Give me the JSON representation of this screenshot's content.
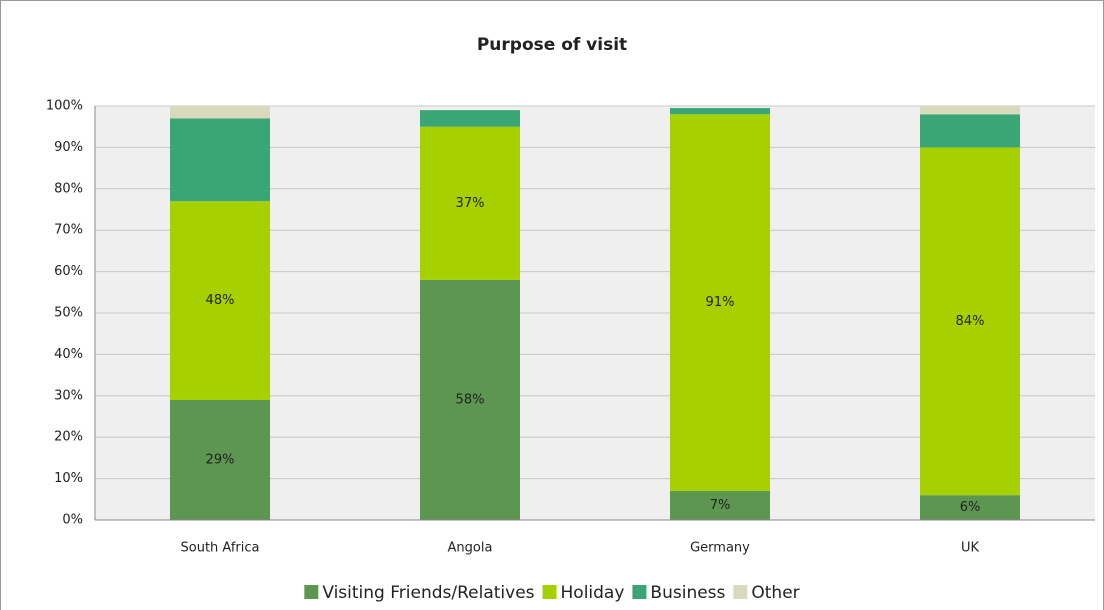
{
  "chart_data": {
    "type": "stacked_bar",
    "title": "Purpose of visit",
    "categories": [
      "South Africa",
      "Angola",
      "Germany",
      "UK"
    ],
    "series": [
      {
        "name": "Visiting Friends/Relatives",
        "color": "#5c9650",
        "values": [
          29,
          58,
          7,
          6
        ],
        "value_labels": [
          "29%",
          "58%",
          "7%",
          "6%"
        ]
      },
      {
        "name": "Holiday",
        "color": "#a6d000",
        "values": [
          48,
          37,
          91,
          84
        ],
        "value_labels": [
          "48%",
          "37%",
          "91%",
          "84%"
        ]
      },
      {
        "name": "Business",
        "color": "#3aa676",
        "values": [
          20,
          4,
          1.5,
          8
        ]
      },
      {
        "name": "Other",
        "color": "#d9d9bd",
        "values": [
          3,
          0,
          0,
          2
        ]
      }
    ],
    "ylim": [
      0,
      100
    ],
    "yticks": [
      {
        "value": 0,
        "label": "0%"
      },
      {
        "value": 10,
        "label": "10%"
      },
      {
        "value": 20,
        "label": "20%"
      },
      {
        "value": 30,
        "label": "30%"
      },
      {
        "value": 40,
        "label": "40%"
      },
      {
        "value": 50,
        "label": "50%"
      },
      {
        "value": 60,
        "label": "60%"
      },
      {
        "value": 70,
        "label": "70%"
      },
      {
        "value": 80,
        "label": "80%"
      },
      {
        "value": 90,
        "label": "90%"
      },
      {
        "value": 100,
        "label": "100%"
      }
    ],
    "grid": true,
    "legend": "bottom"
  }
}
